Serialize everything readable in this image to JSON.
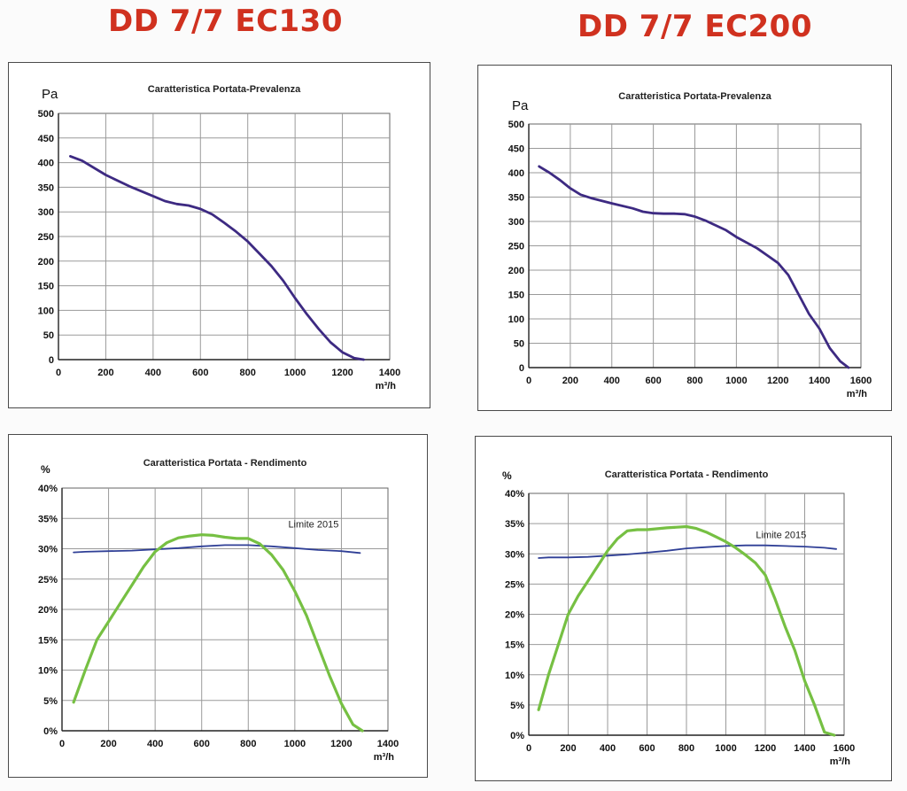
{
  "headings": {
    "left": "DD 7/7 EC130",
    "right": "DD 7/7 EC200"
  },
  "chart_data": [
    {
      "type": "line",
      "title": "Caratteristica Portata-Prevalenza",
      "ylabel": "Pa",
      "xlabel": "m³/h",
      "xlim": [
        0,
        1400
      ],
      "ylim": [
        0,
        500
      ],
      "x_ticks": [
        0,
        200,
        400,
        600,
        800,
        1000,
        1200,
        1400
      ],
      "y_ticks": [
        0,
        50,
        100,
        150,
        200,
        250,
        300,
        350,
        400,
        450,
        500
      ],
      "y_tick_suffix": "",
      "grid": true,
      "series": [
        {
          "color": "#3d2a82",
          "width": 2.8,
          "x": [
            50,
            100,
            200,
            300,
            400,
            450,
            500,
            550,
            600,
            650,
            700,
            750,
            800,
            850,
            900,
            950,
            1000,
            1050,
            1100,
            1150,
            1200,
            1250,
            1290
          ],
          "y": [
            413,
            404,
            375,
            352,
            332,
            322,
            316,
            313,
            306,
            295,
            278,
            260,
            240,
            215,
            190,
            160,
            125,
            92,
            62,
            35,
            15,
            3,
            0
          ]
        }
      ],
      "annotations": []
    },
    {
      "type": "line",
      "title": "Caratteristica Portata-Prevalenza",
      "ylabel": "Pa",
      "xlabel": "m³/h",
      "xlim": [
        0,
        1600
      ],
      "ylim": [
        0,
        500
      ],
      "x_ticks": [
        0,
        200,
        400,
        600,
        800,
        1000,
        1200,
        1400,
        1600
      ],
      "y_ticks": [
        0,
        50,
        100,
        150,
        200,
        250,
        300,
        350,
        400,
        450,
        500
      ],
      "y_tick_suffix": "",
      "grid": true,
      "series": [
        {
          "color": "#3d2a82",
          "width": 2.8,
          "x": [
            50,
            100,
            150,
            200,
            250,
            300,
            400,
            500,
            550,
            600,
            650,
            700,
            750,
            800,
            850,
            900,
            950,
            1000,
            1100,
            1150,
            1200,
            1250,
            1300,
            1350,
            1400,
            1450,
            1500,
            1540
          ],
          "y": [
            413,
            400,
            385,
            368,
            355,
            348,
            337,
            327,
            320,
            317,
            316,
            316,
            315,
            310,
            302,
            292,
            282,
            268,
            245,
            230,
            215,
            190,
            150,
            110,
            80,
            40,
            13,
            0
          ]
        }
      ],
      "annotations": []
    },
    {
      "type": "line",
      "title": "Caratteristica Portata - Rendimento",
      "ylabel": "%",
      "xlabel": "m³/h",
      "xlim": [
        0,
        1400
      ],
      "ylim": [
        0,
        40
      ],
      "x_ticks": [
        0,
        200,
        400,
        600,
        800,
        1000,
        1200,
        1400
      ],
      "y_ticks": [
        0,
        5,
        10,
        15,
        20,
        25,
        30,
        35,
        40
      ],
      "y_tick_suffix": "%",
      "grid": true,
      "series": [
        {
          "color": "#2f3f96",
          "width": 1.8,
          "x": [
            50,
            100,
            200,
            300,
            400,
            500,
            600,
            700,
            800,
            900,
            1000,
            1100,
            1200,
            1280
          ],
          "y": [
            29.4,
            29.5,
            29.6,
            29.7,
            29.9,
            30.1,
            30.4,
            30.6,
            30.6,
            30.4,
            30.1,
            29.8,
            29.6,
            29.3
          ]
        },
        {
          "color": "#76c043",
          "width": 3.2,
          "x": [
            50,
            100,
            150,
            200,
            250,
            300,
            350,
            400,
            450,
            500,
            550,
            600,
            650,
            700,
            750,
            800,
            850,
            900,
            950,
            1000,
            1050,
            1100,
            1150,
            1200,
            1250,
            1290
          ],
          "y": [
            4.7,
            10,
            15,
            18,
            21,
            24,
            27,
            29.5,
            31,
            31.8,
            32.1,
            32.3,
            32.2,
            31.9,
            31.7,
            31.7,
            30.8,
            29,
            26.5,
            23,
            19,
            14,
            9,
            4.5,
            1,
            0
          ]
        }
      ],
      "annotations": [
        {
          "text": "Limite 2015",
          "x": 1080,
          "y": 33.5
        }
      ]
    },
    {
      "type": "line",
      "title": "Caratteristica Portata - Rendimento",
      "ylabel": "%",
      "xlabel": "m³/h",
      "xlim": [
        0,
        1600
      ],
      "ylim": [
        0,
        40
      ],
      "x_ticks": [
        0,
        200,
        400,
        600,
        800,
        1000,
        1200,
        1400,
        1600
      ],
      "y_ticks": [
        0,
        5,
        10,
        15,
        20,
        25,
        30,
        35,
        40
      ],
      "y_tick_suffix": "%",
      "grid": true,
      "series": [
        {
          "color": "#2f3f96",
          "width": 1.8,
          "x": [
            50,
            100,
            200,
            300,
            400,
            500,
            600,
            700,
            800,
            900,
            1000,
            1100,
            1200,
            1300,
            1400,
            1500,
            1560
          ],
          "y": [
            29.3,
            29.4,
            29.4,
            29.5,
            29.7,
            29.9,
            30.2,
            30.5,
            30.9,
            31.1,
            31.3,
            31.4,
            31.4,
            31.3,
            31.2,
            31.0,
            30.8
          ]
        },
        {
          "color": "#76c043",
          "width": 3.2,
          "x": [
            50,
            100,
            150,
            200,
            250,
            300,
            350,
            400,
            450,
            500,
            550,
            600,
            700,
            800,
            850,
            900,
            950,
            1000,
            1050,
            1100,
            1150,
            1200,
            1250,
            1300,
            1350,
            1400,
            1450,
            1500,
            1550
          ],
          "y": [
            4.2,
            10,
            15,
            20,
            23,
            25.5,
            28,
            30.5,
            32.5,
            33.8,
            34.0,
            34.0,
            34.3,
            34.5,
            34.2,
            33.6,
            32.8,
            32.0,
            31.0,
            29.8,
            28.5,
            26.5,
            22.5,
            18,
            14,
            9,
            5,
            0.5,
            0
          ]
        }
      ],
      "annotations": [
        {
          "text": "Limite 2015",
          "x": 1280,
          "y": 32.6
        }
      ]
    }
  ]
}
